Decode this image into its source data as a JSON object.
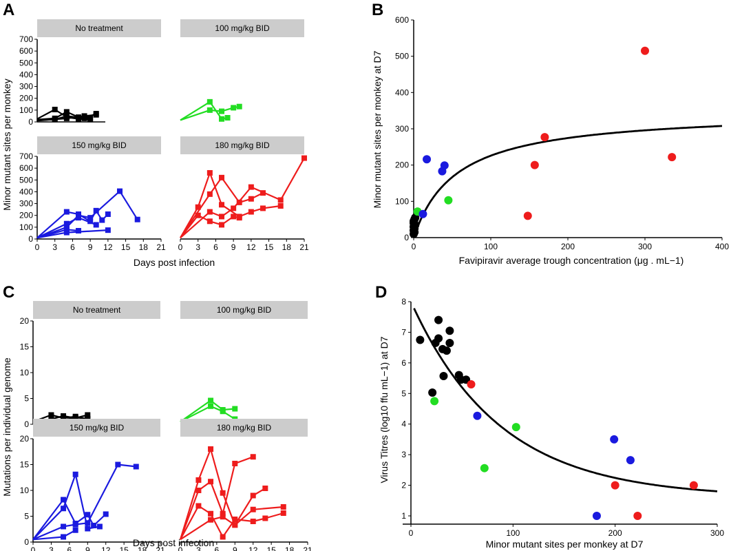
{
  "colors": {
    "none": "#000000",
    "mg100": "#22dd22",
    "mg150": "#1a1adf",
    "mg180": "#ee1c1c"
  },
  "chart_data": [
    {
      "id": "A",
      "panel_label": "A",
      "type": "line",
      "ylabel": "Minor mutant sites per monkey",
      "xlabel": "Days post infection",
      "xlim": [
        0,
        21
      ],
      "ylim": [
        0,
        700
      ],
      "xticks": [
        0,
        3,
        6,
        9,
        12,
        15,
        18,
        21
      ],
      "yticks": [
        0,
        100,
        200,
        300,
        400,
        500,
        600,
        700
      ],
      "facets": [
        {
          "title": "No treatment",
          "color": "none",
          "lines": [
            [
              [
                0,
                25
              ],
              [
                3,
                105
              ],
              [
                5,
                40
              ],
              [
                7,
                25
              ],
              [
                9,
                20
              ]
            ],
            [
              [
                0,
                20
              ],
              [
                3,
                30
              ],
              [
                5,
                85
              ],
              [
                7,
                40
              ],
              [
                9,
                30
              ]
            ],
            [
              [
                0,
                15
              ],
              [
                3,
                20
              ],
              [
                5,
                50
              ],
              [
                8,
                30
              ],
              [
                10,
                70
              ]
            ],
            [
              [
                0,
                10
              ],
              [
                5,
                30
              ],
              [
                8,
                50
              ],
              [
                10,
                60
              ]
            ]
          ]
        },
        {
          "title": "100 mg/kg BID",
          "color": "mg100",
          "lines": [
            [
              [
                0,
                15
              ],
              [
                5,
                170
              ],
              [
                7,
                25
              ],
              [
                8,
                35
              ]
            ],
            [
              [
                0,
                15
              ],
              [
                5,
                100
              ],
              [
                7,
                90
              ],
              [
                9,
                120
              ],
              [
                10,
                130
              ]
            ]
          ]
        },
        {
          "title": "150 mg/kg BID",
          "color": "mg150",
          "lines": [
            [
              [
                0,
                10
              ],
              [
                5,
                230
              ],
              [
                7,
                210
              ],
              [
                9,
                150
              ],
              [
                10,
                240
              ],
              [
                11,
                160
              ],
              [
                12,
                210
              ]
            ],
            [
              [
                0,
                10
              ],
              [
                5,
                130
              ],
              [
                7,
                180
              ],
              [
                10,
                120
              ]
            ],
            [
              [
                0,
                10
              ],
              [
                5,
                100
              ],
              [
                7,
                200
              ],
              [
                9,
                180
              ],
              [
                14,
                405
              ],
              [
                17,
                165
              ]
            ],
            [
              [
                0,
                10
              ],
              [
                5,
                80
              ],
              [
                7,
                70
              ]
            ],
            [
              [
                0,
                10
              ],
              [
                5,
                55
              ],
              [
                12,
                75
              ]
            ]
          ]
        },
        {
          "title": "180 mg/kg BID",
          "color": "mg180",
          "lines": [
            [
              [
                0,
                10
              ],
              [
                3,
                270
              ],
              [
                5,
                560
              ],
              [
                7,
                290
              ],
              [
                10,
                190
              ],
              [
                12,
                230
              ],
              [
                14,
                260
              ],
              [
                17,
                280
              ]
            ],
            [
              [
                0,
                10
              ],
              [
                5,
                380
              ],
              [
                7,
                520
              ],
              [
                10,
                310
              ],
              [
                12,
                340
              ],
              [
                14,
                390
              ]
            ],
            [
              [
                0,
                10
              ],
              [
                5,
                230
              ],
              [
                7,
                190
              ],
              [
                9,
                260
              ],
              [
                12,
                440
              ],
              [
                17,
                330
              ],
              [
                21,
                685
              ]
            ],
            [
              [
                0,
                10
              ],
              [
                3,
                200
              ],
              [
                5,
                150
              ],
              [
                7,
                120
              ],
              [
                9,
                190
              ],
              [
                10,
                180
              ]
            ]
          ]
        }
      ]
    },
    {
      "id": "B",
      "panel_label": "B",
      "type": "scatter",
      "ylabel": "Minor mutant sites per monkey at D7",
      "xlabel": "Favipiravir average trough concentration (μg . mL−1)",
      "xlim": [
        0,
        400
      ],
      "ylim": [
        0,
        600
      ],
      "xticks": [
        0,
        100,
        200,
        300,
        400
      ],
      "yticks": [
        0,
        100,
        200,
        300,
        400,
        500,
        600
      ],
      "points": [
        {
          "x": 0,
          "y": 10,
          "c": "none"
        },
        {
          "x": 0,
          "y": 20,
          "c": "none"
        },
        {
          "x": 0,
          "y": 30,
          "c": "none"
        },
        {
          "x": 0,
          "y": 40,
          "c": "none"
        },
        {
          "x": 1,
          "y": 50,
          "c": "none"
        },
        {
          "x": 1,
          "y": 25,
          "c": "none"
        },
        {
          "x": 2,
          "y": 35,
          "c": "none"
        },
        {
          "x": 0,
          "y": 45,
          "c": "none"
        },
        {
          "x": 1,
          "y": 15,
          "c": "none"
        },
        {
          "x": 2,
          "y": 55,
          "c": "none"
        },
        {
          "x": 5,
          "y": 72,
          "c": "mg100"
        },
        {
          "x": 45,
          "y": 103,
          "c": "mg100"
        },
        {
          "x": 12,
          "y": 65,
          "c": "mg150"
        },
        {
          "x": 17,
          "y": 216,
          "c": "mg150"
        },
        {
          "x": 37,
          "y": 183,
          "c": "mg150"
        },
        {
          "x": 40,
          "y": 199,
          "c": "mg150"
        },
        {
          "x": 148,
          "y": 60,
          "c": "mg180"
        },
        {
          "x": 157,
          "y": 200,
          "c": "mg180"
        },
        {
          "x": 170,
          "y": 277,
          "c": "mg180"
        },
        {
          "x": 300,
          "y": 515,
          "c": "mg180"
        },
        {
          "x": 335,
          "y": 222,
          "c": "mg180"
        }
      ],
      "fit": {
        "form": "ymax*x/(K+x)",
        "ymax": 350,
        "K": 55
      }
    },
    {
      "id": "C",
      "panel_label": "C",
      "type": "line",
      "ylabel": "Mutations per individual genome",
      "xlabel": "Days post infection",
      "xlim": [
        0,
        21
      ],
      "ylim": [
        0,
        20
      ],
      "xticks": [
        0,
        3,
        6,
        9,
        12,
        15,
        18,
        21
      ],
      "yticks": [
        0,
        5,
        10,
        15,
        20
      ],
      "facets": [
        {
          "title": "No treatment",
          "color": "none",
          "lines": [
            [
              [
                0,
                0.5
              ],
              [
                3,
                1.8
              ],
              [
                5,
                1.2
              ],
              [
                7,
                1.5
              ],
              [
                9,
                1.0
              ]
            ],
            [
              [
                0,
                0.5
              ],
              [
                3,
                1.0
              ],
              [
                5,
                1.6
              ],
              [
                7,
                1.2
              ],
              [
                9,
                1.8
              ]
            ],
            [
              [
                0,
                0.5
              ],
              [
                5,
                0.8
              ],
              [
                7,
                1.3
              ],
              [
                9,
                1.1
              ]
            ]
          ]
        },
        {
          "title": "100 mg/kg BID",
          "color": "mg100",
          "lines": [
            [
              [
                0,
                0.5
              ],
              [
                5,
                4.6
              ],
              [
                7,
                2.8
              ],
              [
                9,
                3.0
              ]
            ],
            [
              [
                0,
                0.5
              ],
              [
                5,
                3.5
              ],
              [
                7,
                2.5
              ],
              [
                9,
                1.0
              ]
            ]
          ]
        },
        {
          "title": "150 mg/kg BID",
          "color": "mg150",
          "lines": [
            [
              [
                0,
                0.5
              ],
              [
                5,
                8.2
              ],
              [
                7,
                3.6
              ],
              [
                9,
                5.3
              ],
              [
                10,
                3.2
              ],
              [
                12,
                5.4
              ]
            ],
            [
              [
                0,
                0.5
              ],
              [
                5,
                6.5
              ],
              [
                7,
                13.1
              ],
              [
                9,
                2.6
              ],
              [
                11,
                3.0
              ]
            ],
            [
              [
                0,
                0.5
              ],
              [
                5,
                3.0
              ],
              [
                7,
                3.4
              ],
              [
                9,
                3.7
              ],
              [
                14,
                15.0
              ],
              [
                17,
                14.6
              ]
            ],
            [
              [
                0,
                0.5
              ],
              [
                5,
                1.0
              ],
              [
                7,
                2.3
              ]
            ]
          ]
        },
        {
          "title": "180 mg/kg BID",
          "color": "mg180",
          "lines": [
            [
              [
                0,
                0.5
              ],
              [
                3,
                12.0
              ],
              [
                5,
                18.0
              ],
              [
                7,
                9.5
              ],
              [
                9,
                3.3
              ],
              [
                12,
                6.3
              ],
              [
                17,
                6.8
              ]
            ],
            [
              [
                0,
                0.5
              ],
              [
                3,
                10.0
              ],
              [
                5,
                11.7
              ],
              [
                7,
                5.5
              ],
              [
                9,
                15.2
              ],
              [
                12,
                16.5
              ]
            ],
            [
              [
                0,
                0.5
              ],
              [
                3,
                7.0
              ],
              [
                5,
                5.5
              ],
              [
                7,
                1.0
              ],
              [
                9,
                4.4
              ],
              [
                12,
                4.0
              ],
              [
                14,
                4.6
              ],
              [
                17,
                5.6
              ]
            ],
            [
              [
                0,
                0.5
              ],
              [
                5,
                4.3
              ],
              [
                7,
                4.9
              ],
              [
                9,
                3.3
              ],
              [
                12,
                9.0
              ],
              [
                14,
                10.4
              ]
            ]
          ]
        }
      ]
    },
    {
      "id": "D",
      "panel_label": "D",
      "type": "scatter",
      "ylabel": "Virus Titres (log10 ffu mL−1) at D7",
      "xlabel": "Minor mutant sites per monkey at D7",
      "xlim": [
        0,
        300
      ],
      "ylim": [
        1,
        8
      ],
      "xticks": [
        0,
        100,
        200,
        300
      ],
      "yticks": [
        1,
        2,
        3,
        4,
        5,
        6,
        7,
        8
      ],
      "points": [
        {
          "x": 9,
          "y": 6.75,
          "c": "none"
        },
        {
          "x": 21,
          "y": 5.03,
          "c": "none"
        },
        {
          "x": 24,
          "y": 6.65,
          "c": "none"
        },
        {
          "x": 27,
          "y": 7.4,
          "c": "none"
        },
        {
          "x": 27,
          "y": 6.8,
          "c": "none"
        },
        {
          "x": 31,
          "y": 6.45,
          "c": "none"
        },
        {
          "x": 32,
          "y": 5.57,
          "c": "none"
        },
        {
          "x": 35,
          "y": 6.4,
          "c": "none"
        },
        {
          "x": 38,
          "y": 7.05,
          "c": "none"
        },
        {
          "x": 38,
          "y": 6.65,
          "c": "none"
        },
        {
          "x": 47,
          "y": 5.6,
          "c": "none"
        },
        {
          "x": 49,
          "y": 5.45,
          "c": "none"
        },
        {
          "x": 54,
          "y": 5.45,
          "c": "none"
        },
        {
          "x": 23,
          "y": 4.75,
          "c": "mg100"
        },
        {
          "x": 72,
          "y": 2.56,
          "c": "mg100"
        },
        {
          "x": 103,
          "y": 3.9,
          "c": "mg100"
        },
        {
          "x": 65,
          "y": 4.27,
          "c": "mg150"
        },
        {
          "x": 182,
          "y": 1.0,
          "c": "mg150"
        },
        {
          "x": 199,
          "y": 3.5,
          "c": "mg150"
        },
        {
          "x": 215,
          "y": 2.82,
          "c": "mg150"
        },
        {
          "x": 59,
          "y": 5.3,
          "c": "mg180"
        },
        {
          "x": 200,
          "y": 2.0,
          "c": "mg180"
        },
        {
          "x": 222,
          "y": 1.0,
          "c": "mg180"
        },
        {
          "x": 277,
          "y": 2.0,
          "c": "mg180"
        }
      ],
      "fit": {
        "form": "a*exp(-b*x)+c",
        "a": 6.4,
        "b": 0.0115,
        "c": 1.6
      }
    }
  ]
}
